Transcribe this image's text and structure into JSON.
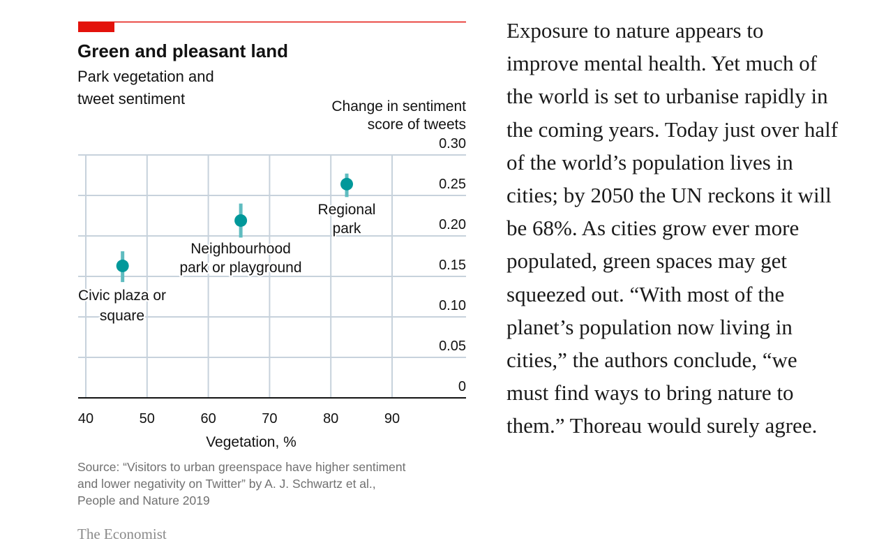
{
  "chart_data": {
    "type": "scatter",
    "title": "Green and pleasant land",
    "subtitle": [
      "Park vegetation and",
      "tweet sentiment"
    ],
    "ylabel": [
      "Change in sentiment",
      "score of tweets"
    ],
    "xlabel": "Vegetation, %",
    "xlim": [
      40,
      100
    ],
    "ylim": [
      0,
      0.3
    ],
    "xticks": [
      "40",
      "50",
      "60",
      "70",
      "80",
      "90"
    ],
    "yticks": [
      "0",
      "0.05",
      "0.10",
      "0.15",
      "0.20",
      "0.25",
      "0.30"
    ],
    "grid": true,
    "points": [
      {
        "label": [
          "Civic plaza or",
          "square"
        ],
        "x": 46,
        "y": 0.163,
        "y_low": 0.143,
        "y_high": 0.181
      },
      {
        "label": [
          "Neighbourhood",
          "park or playground"
        ],
        "x": 65.3,
        "y": 0.219,
        "y_low": 0.198,
        "y_high": 0.24
      },
      {
        "label": [
          "Regional",
          "park"
        ],
        "x": 82.6,
        "y": 0.264,
        "y_low": 0.248,
        "y_high": 0.277
      }
    ],
    "source": [
      "Source: “Visitors to urban greenspace have higher sentiment",
      "and lower negativity on Twitter” by A. J. Schwartz et al.,",
      "People and Nature 2019"
    ],
    "publisher": "The Economist",
    "colors": {
      "accent": "#e3120b",
      "point": "#00989a",
      "errorbar": "#5fbcc0",
      "grid": "#c7d2dc",
      "axis": "#121212",
      "source": "#707070"
    }
  },
  "article": {
    "lines": [
      "Exposure to nature appears to",
      "improve mental health. Yet much of",
      "the world is set to urbanise rapidly in",
      "the coming years. Today just over half",
      "of the world’s population lives in",
      "cities; by 2050 the UN reckons it will",
      "be 68%. As cities grow ever more",
      "populated, green spaces may get",
      "squeezed out. “With most of the",
      "planet’s population now living in",
      "cities,” the authors conclude, “we",
      "must find ways to bring nature to",
      "them.” Thoreau would surely agree."
    ]
  }
}
